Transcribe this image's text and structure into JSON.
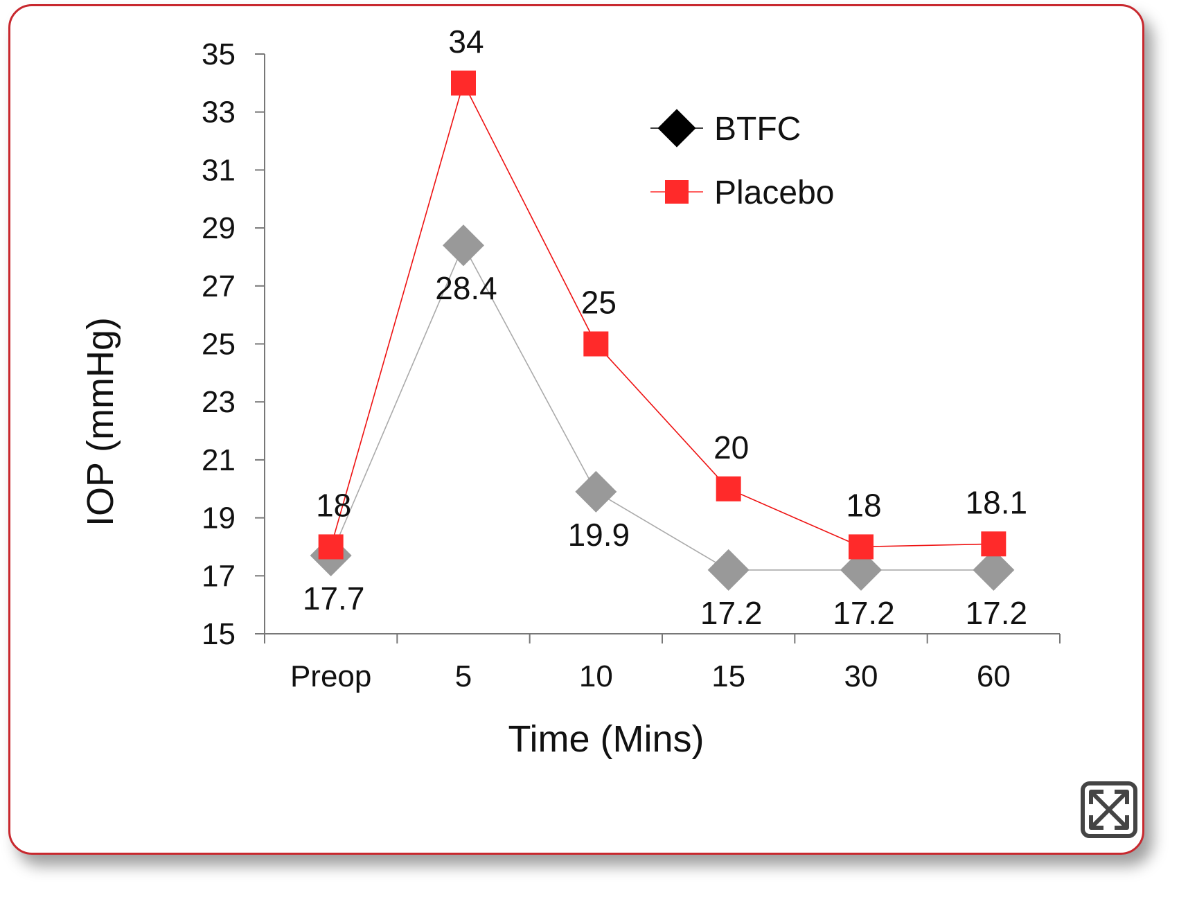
{
  "chart_data": {
    "type": "line",
    "title": "",
    "xlabel": "Time (Mins)",
    "ylabel": "IOP (mmHg)",
    "ylim": [
      15,
      35
    ],
    "yticks": [
      15,
      17,
      19,
      21,
      23,
      25,
      27,
      29,
      31,
      33,
      35
    ],
    "categories": [
      "Preop",
      "5",
      "10",
      "15",
      "30",
      "60"
    ],
    "legend_position": "top-right",
    "grid": false,
    "series": [
      {
        "name": "BTFC",
        "marker": "diamond",
        "legend_color": "#000000",
        "color": "#999999",
        "line_color": "#aaaaaa",
        "values": [
          17.7,
          28.4,
          19.9,
          17.2,
          17.2,
          17.2
        ],
        "labels": [
          "17.7",
          "28.4",
          "19.9",
          "17.2",
          "17.2",
          "17.2"
        ]
      },
      {
        "name": "Placebo",
        "marker": "square",
        "legend_color": "#ff2a2a",
        "color": "#ff2a2a",
        "line_color": "#ee1111",
        "values": [
          18,
          34,
          25,
          20,
          18,
          18.1
        ],
        "labels": [
          "18",
          "34",
          "25",
          "20",
          "18",
          "18.1"
        ]
      }
    ]
  },
  "controls": {
    "expand_icon": "expand-arrows-icon"
  }
}
